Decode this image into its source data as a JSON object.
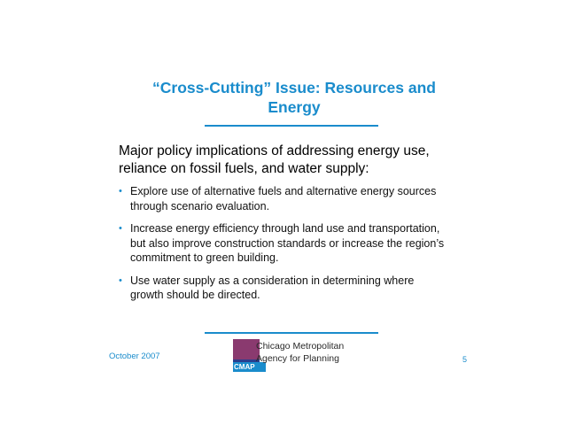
{
  "slide": {
    "title": "“Cross-Cutting” Issue: Resources and Energy",
    "lead": "Major policy implications of addressing energy use, reliance on fossil fuels, and water supply:",
    "bullets": [
      "Explore use of alternative fuels and alternative energy sources through scenario evaluation.",
      "Increase energy efficiency through land use and transportation, but also improve construction standards or increase the region’s commitment to green building.",
      "Use water supply as a consideration in determining where growth should be directed."
    ],
    "footer": {
      "date": "October 2007",
      "logo_line1": "Chicago Metropolitan",
      "logo_line2": "Agency for Planning",
      "logo_badge": "CMAP",
      "page_number": "5"
    }
  },
  "colors": {
    "accent": "#1a8ccc",
    "logo_purple": "#8a3a6f",
    "logo_navy": "#2a3f8f"
  }
}
